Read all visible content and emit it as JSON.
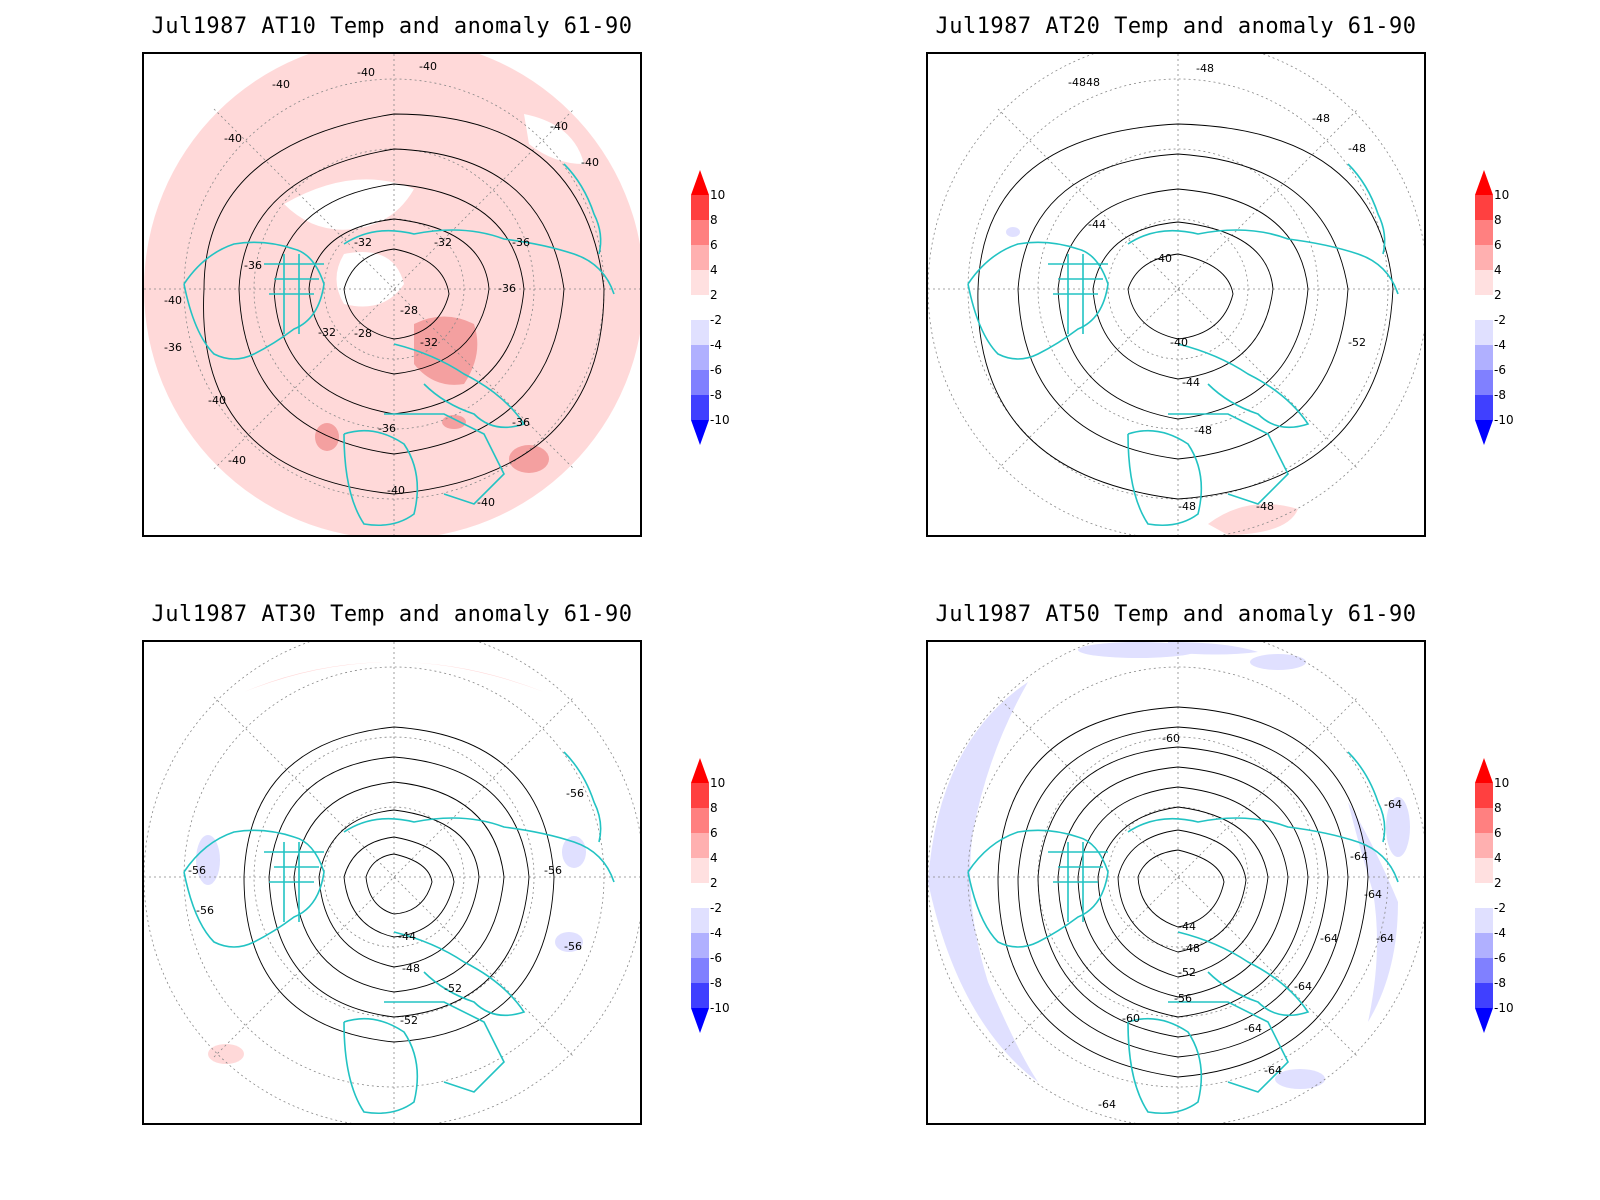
{
  "colors": {
    "coastline": "#22c3c3",
    "contour": "#000000",
    "grid": "#888888",
    "warm_light": "#ffd9d9",
    "warm_mid": "#f4a0a0",
    "cool_light": "#e0e0ff",
    "cool_mid": "#b8b8ff"
  },
  "colorbar": {
    "ticks": [
      "10",
      "8",
      "6",
      "4",
      "2",
      "-2",
      "-4",
      "-6",
      "-8",
      "-10"
    ],
    "colors": [
      "#ff0000",
      "#ff4040",
      "#ff8080",
      "#ffb0b0",
      "#ffe0e0",
      "#ffffff",
      "#e0e0ff",
      "#b0b0ff",
      "#8080ff",
      "#4040ff",
      "#0000ff"
    ]
  },
  "panels": [
    {
      "title": "Jul1987 AT10 Temp and anomaly 61-90",
      "background_anomaly": "warm-light",
      "contour_labels": [
        "-40",
        "-40",
        "-40",
        "-40",
        "-40",
        "-40",
        "-40",
        "-40",
        "-40",
        "-40",
        "-40",
        "-36",
        "-36",
        "-36",
        "-36",
        "-36",
        "-36",
        "-32",
        "-32",
        "-32",
        "-32",
        "-28",
        "-28"
      ]
    },
    {
      "title": "Jul1987 AT20 Temp and anomaly 61-90",
      "background_anomaly": "none",
      "contour_labels": [
        "-4848",
        "-48",
        "-48",
        "-48",
        "-44",
        "-40",
        "-40",
        "-44",
        "-48",
        "-52",
        "-48",
        "-48"
      ]
    },
    {
      "title": "Jul1987 AT30 Temp and anomaly 61-90",
      "background_anomaly": "none",
      "contour_labels": [
        "-56",
        "-56",
        "-56",
        "-56",
        "-56",
        "-44",
        "-48",
        "-52",
        "-52"
      ]
    },
    {
      "title": "Jul1987 AT50 Temp and anomaly 61-90",
      "background_anomaly": "none",
      "contour_labels": [
        "-60",
        "-64",
        "-64",
        "-64",
        "-64",
        "-64",
        "-44",
        "-48",
        "-52",
        "-56",
        "-60",
        "-64",
        "-64",
        "-64",
        "-64"
      ]
    }
  ]
}
